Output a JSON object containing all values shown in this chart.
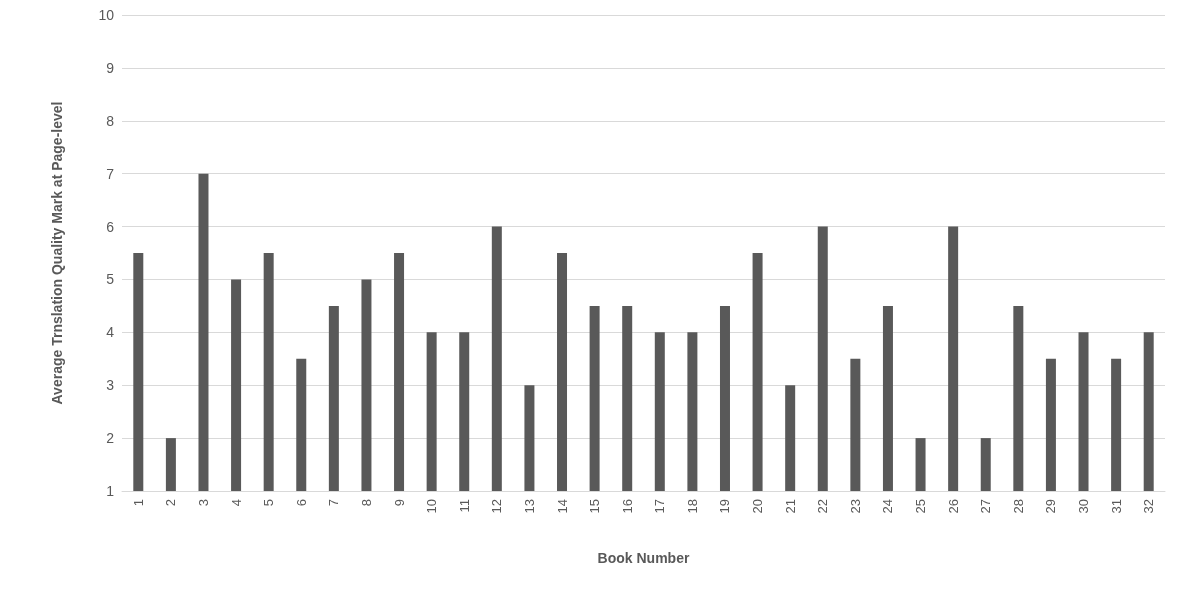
{
  "chart_data": {
    "type": "bar",
    "xlabel": "Book Number",
    "ylabel": "Average Trnslation Quality Mark at Page-level",
    "categories": [
      "1",
      "2",
      "3",
      "4",
      "5",
      "6",
      "7",
      "8",
      "9",
      "10",
      "11",
      "12",
      "13",
      "14",
      "15",
      "16",
      "17",
      "18",
      "19",
      "20",
      "21",
      "22",
      "23",
      "24",
      "25",
      "26",
      "27",
      "28",
      "29",
      "30",
      "31",
      "32"
    ],
    "values": [
      5.5,
      2,
      7,
      5,
      5.5,
      3.5,
      4.5,
      5,
      5.5,
      4,
      4,
      6,
      3,
      5.5,
      4.5,
      4.5,
      4,
      4,
      4.5,
      5.5,
      3,
      6,
      3.5,
      4.5,
      2,
      6,
      2,
      4.5,
      3.5,
      4,
      3.5,
      4
    ],
    "color": "#595959",
    "ylim": [
      1,
      10
    ],
    "yticks": [
      1,
      2,
      3,
      4,
      5,
      6,
      7,
      8,
      9,
      10
    ],
    "grid": "y"
  }
}
